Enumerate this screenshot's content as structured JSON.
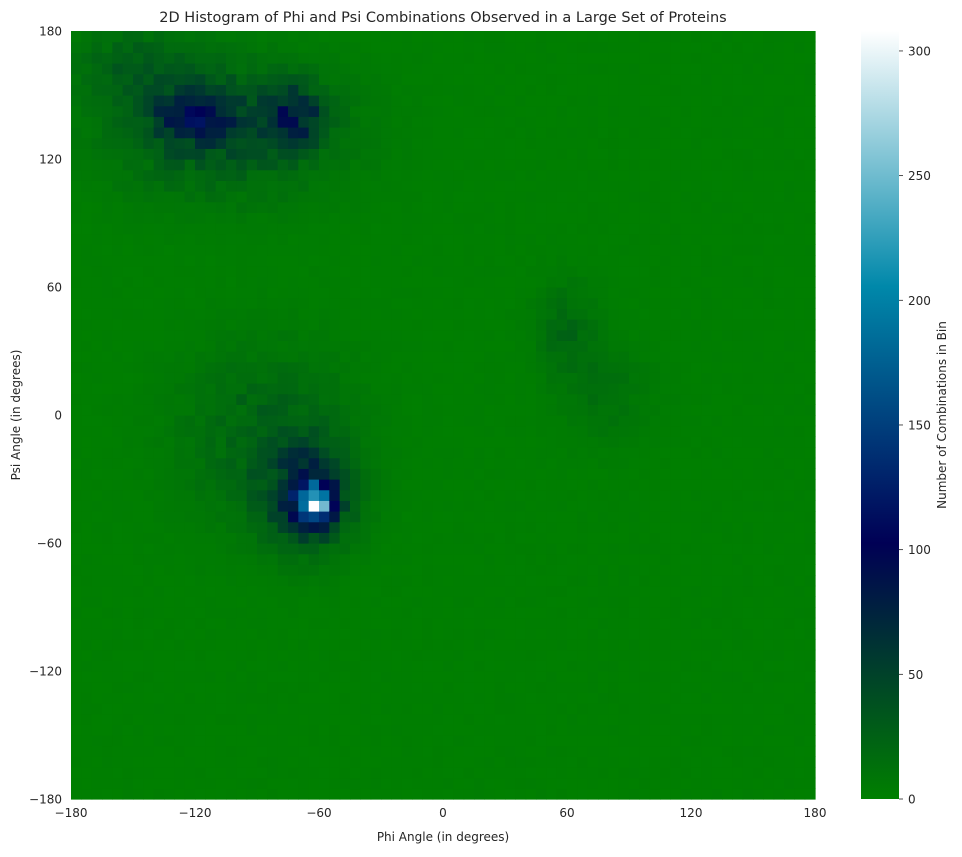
{
  "chart_data": {
    "type": "heatmap",
    "title": "2D Histogram of Phi and Psi Combinations Observed in a Large Set of Proteins",
    "xlabel": "Phi Angle (in degrees)",
    "ylabel": "Psi Angle (in degrees)",
    "xlim": [
      -180,
      180
    ],
    "ylim": [
      -180,
      180
    ],
    "xticks": [
      -180,
      -120,
      -60,
      0,
      60,
      120,
      180
    ],
    "yticks": [
      -180,
      -120,
      -60,
      0,
      60,
      120,
      180
    ],
    "xtick_labels": [
      "−180",
      "−120",
      "−60",
      "0",
      "60",
      "120",
      "180"
    ],
    "ytick_labels": [
      "−180",
      "−120",
      "−60",
      "0",
      "60",
      "120",
      "180"
    ],
    "bins": 72,
    "bin_width_degrees": 5,
    "grid": false,
    "colormap": "ocean",
    "colorbar": {
      "label": "Number of Combinations in Bin",
      "range": [
        0,
        308
      ],
      "ticks": [
        0,
        50,
        100,
        150,
        200,
        250,
        300
      ],
      "tick_labels": [
        "0",
        "50",
        "100",
        "150",
        "200",
        "250",
        "300"
      ]
    },
    "regions": [
      {
        "phi": -62,
        "psi": -41,
        "peak_count": 308,
        "sigma_phi": 5,
        "sigma_psi": 5
      },
      {
        "phi": -65,
        "psi": -38,
        "peak_count": 75,
        "sigma_phi": 14,
        "sigma_psi": 16
      },
      {
        "phi": -85,
        "psi": -10,
        "peak_count": 25,
        "sigma_phi": 28,
        "sigma_psi": 28
      },
      {
        "phi": -120,
        "psi": 140,
        "peak_count": 65,
        "sigma_phi": 14,
        "sigma_psi": 10
      },
      {
        "phi": -72,
        "psi": 140,
        "peak_count": 60,
        "sigma_phi": 10,
        "sigma_psi": 10
      },
      {
        "phi": -105,
        "psi": 135,
        "peak_count": 35,
        "sigma_phi": 38,
        "sigma_psi": 22
      },
      {
        "phi": -150,
        "psi": 165,
        "peak_count": 20,
        "sigma_phi": 20,
        "sigma_psi": 15
      },
      {
        "phi": 60,
        "psi": 40,
        "peak_count": 18,
        "sigma_phi": 10,
        "sigma_psi": 15
      },
      {
        "phi": 80,
        "psi": 10,
        "peak_count": 12,
        "sigma_phi": 15,
        "sigma_psi": 15
      }
    ],
    "background_count": 2
  }
}
